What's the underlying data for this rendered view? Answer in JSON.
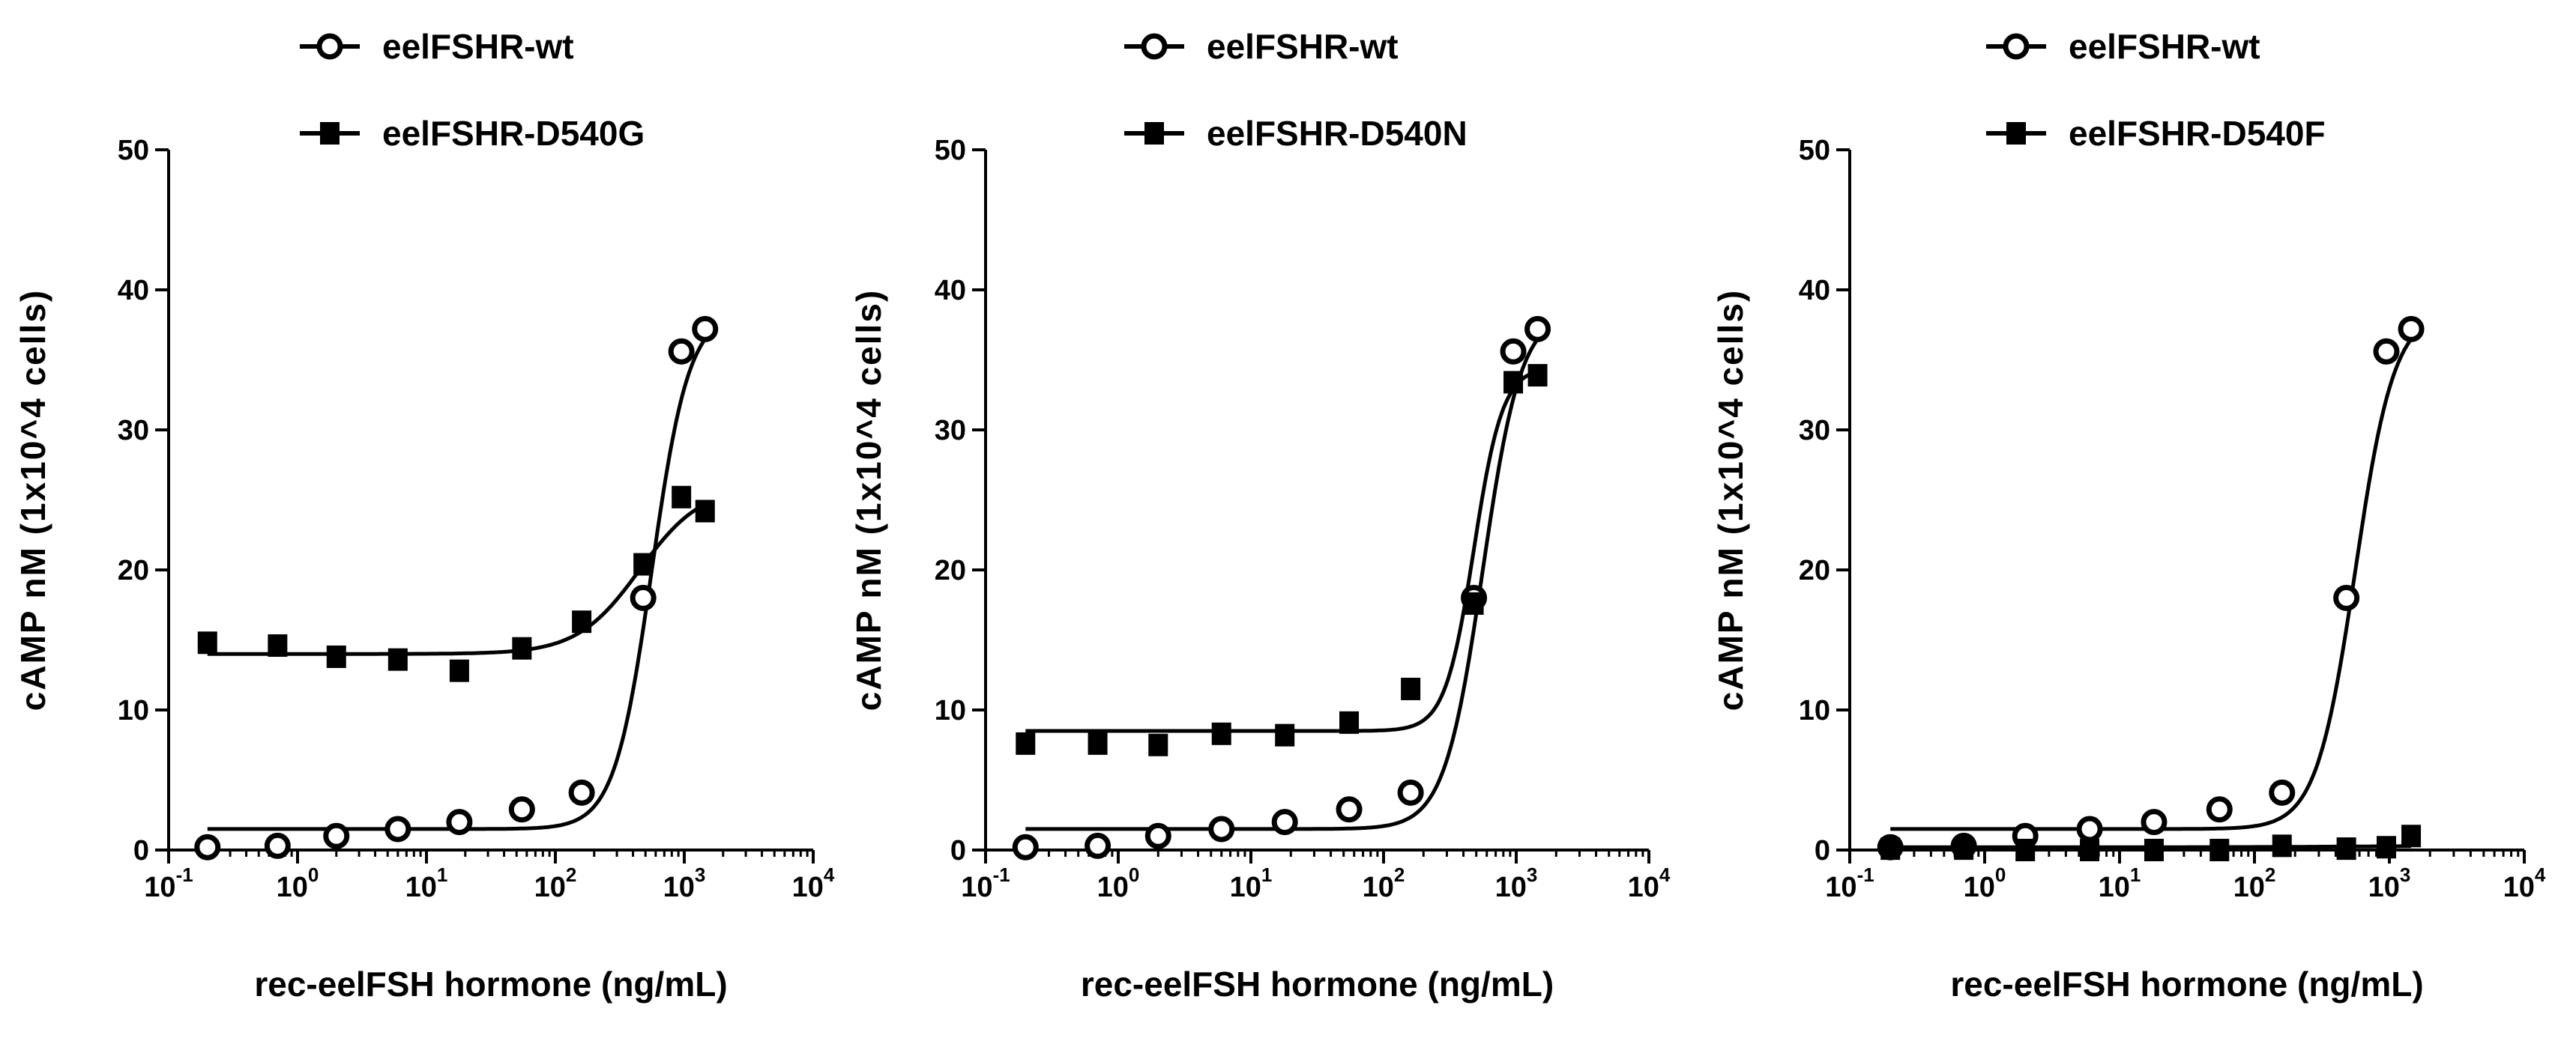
{
  "chart_data": [
    {
      "type": "scatter",
      "xscale": "log",
      "xlim": [
        0.1,
        10000
      ],
      "ylim": [
        0,
        50
      ],
      "yticks": [
        0,
        10,
        20,
        30,
        40,
        50
      ],
      "ytick_labels": [
        "0",
        "10",
        "20",
        "30",
        "40",
        "50"
      ],
      "xticks": [
        0.1,
        1,
        10,
        100,
        1000,
        10000
      ],
      "xtick_labels": [
        {
          "base": "10",
          "exp": "-1"
        },
        {
          "base": "10",
          "exp": "0"
        },
        {
          "base": "10",
          "exp": "1"
        },
        {
          "base": "10",
          "exp": "2"
        },
        {
          "base": "10",
          "exp": "3"
        },
        {
          "base": "10",
          "exp": "4"
        }
      ],
      "xlabel": "rec-eelFSH hormone (ng/mL)",
      "ylabel": "cAMP nM (1x10^4 cells)",
      "legend_position": "top-left",
      "series": [
        {
          "name": "eelFSHR-wt",
          "marker": "open-circle",
          "x": [
            0.2,
            0.7,
            2,
            6,
            18,
            55,
            160,
            480,
            950,
            1450
          ],
          "y": [
            0.2,
            0.3,
            1.0,
            1.5,
            2.0,
            2.9,
            4.1,
            18.0,
            35.6,
            37.2
          ],
          "fit": {
            "bottom": 1.5,
            "top": 38.5,
            "ec50": 560,
            "hill": 3.0
          }
        },
        {
          "name": "eelFSHR-D540G",
          "marker": "filled-square",
          "x": [
            0.2,
            0.7,
            2,
            6,
            18,
            55,
            160,
            480,
            950,
            1450
          ],
          "y": [
            14.8,
            14.6,
            13.8,
            13.6,
            12.8,
            14.4,
            16.3,
            20.4,
            25.2,
            24.2
          ],
          "fit": {
            "bottom": 14.0,
            "top": 26.0,
            "ec50": 450,
            "hill": 1.8
          }
        }
      ]
    },
    {
      "type": "scatter",
      "xscale": "log",
      "xlim": [
        0.1,
        10000
      ],
      "ylim": [
        0,
        50
      ],
      "yticks": [
        0,
        10,
        20,
        30,
        40,
        50
      ],
      "ytick_labels": [
        "0",
        "10",
        "20",
        "30",
        "40",
        "50"
      ],
      "xticks": [
        0.1,
        1,
        10,
        100,
        1000,
        10000
      ],
      "xtick_labels": [
        {
          "base": "10",
          "exp": "-1"
        },
        {
          "base": "10",
          "exp": "0"
        },
        {
          "base": "10",
          "exp": "1"
        },
        {
          "base": "10",
          "exp": "2"
        },
        {
          "base": "10",
          "exp": "3"
        },
        {
          "base": "10",
          "exp": "4"
        }
      ],
      "xlabel": "rec-eelFSH hormone (ng/mL)",
      "ylabel": "cAMP nM (1x10^4 cells)",
      "legend_position": "top-left",
      "series": [
        {
          "name": "eelFSHR-wt",
          "marker": "open-circle",
          "x": [
            0.2,
            0.7,
            2,
            6,
            18,
            55,
            160,
            480,
            950,
            1450
          ],
          "y": [
            0.2,
            0.3,
            1.0,
            1.5,
            2.0,
            2.9,
            4.1,
            18.0,
            35.6,
            37.2
          ],
          "fit": {
            "bottom": 1.5,
            "top": 38.5,
            "ec50": 560,
            "hill": 3.0
          }
        },
        {
          "name": "eelFSHR-D540N",
          "marker": "filled-square",
          "x": [
            0.2,
            0.7,
            2,
            6,
            18,
            55,
            160,
            480,
            950,
            1450
          ],
          "y": [
            7.6,
            7.6,
            7.5,
            8.3,
            8.2,
            9.1,
            11.5,
            17.6,
            33.4,
            33.9
          ],
          "fit": {
            "bottom": 8.5,
            "top": 34.5,
            "ec50": 480,
            "hill": 4.0
          }
        }
      ]
    },
    {
      "type": "scatter",
      "xscale": "log",
      "xlim": [
        0.1,
        10000
      ],
      "ylim": [
        0,
        50
      ],
      "yticks": [
        0,
        10,
        20,
        30,
        40,
        50
      ],
      "ytick_labels": [
        "0",
        "10",
        "20",
        "30",
        "40",
        "50"
      ],
      "xticks": [
        0.1,
        1,
        10,
        100,
        1000,
        10000
      ],
      "xtick_labels": [
        {
          "base": "10",
          "exp": "-1"
        },
        {
          "base": "10",
          "exp": "0"
        },
        {
          "base": "10",
          "exp": "1"
        },
        {
          "base": "10",
          "exp": "2"
        },
        {
          "base": "10",
          "exp": "3"
        },
        {
          "base": "10",
          "exp": "4"
        }
      ],
      "xlabel": "rec-eelFSH hormone (ng/mL)",
      "ylabel": "cAMP nM (1x10^4 cells)",
      "legend_position": "top-left",
      "series": [
        {
          "name": "eelFSHR-wt",
          "marker": "open-circle",
          "x": [
            0.2,
            0.7,
            2,
            6,
            18,
            55,
            160,
            480,
            950,
            1450
          ],
          "y": [
            0.2,
            0.3,
            1.0,
            1.5,
            2.0,
            2.9,
            4.1,
            18.0,
            35.6,
            37.2
          ],
          "fit": {
            "bottom": 1.5,
            "top": 38.5,
            "ec50": 560,
            "hill": 3.0
          }
        },
        {
          "name": "eelFSHR-D540F",
          "marker": "filled-square",
          "x": [
            0.2,
            0.7,
            2,
            6,
            18,
            55,
            160,
            480,
            950,
            1450
          ],
          "y": [
            0.1,
            0.1,
            0.0,
            0.0,
            0.0,
            0.0,
            0.3,
            0.1,
            0.2,
            1.0
          ],
          "fit": {
            "bottom": 0.2,
            "top": 0.3,
            "ec50": 500,
            "hill": 1.0
          }
        }
      ]
    }
  ]
}
